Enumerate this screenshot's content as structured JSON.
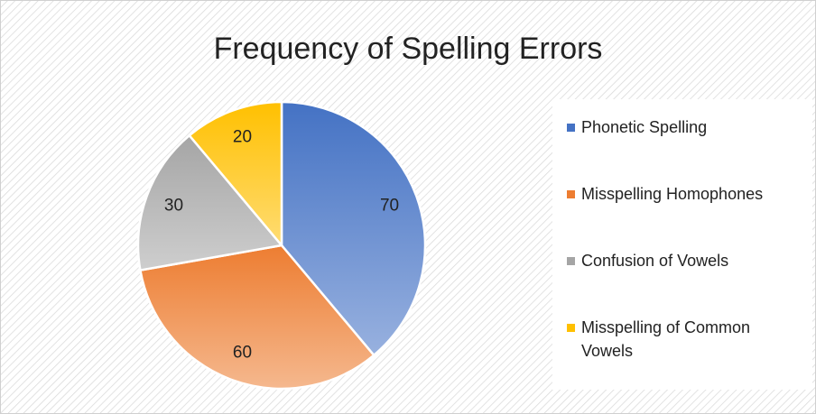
{
  "chart_data": {
    "type": "pie",
    "title": "Frequency of Spelling Errors",
    "categories": [
      "Phonetic Spelling",
      "Misspelling Homophones",
      "Confusion of Vowels",
      "Misspelling of Common Vowels"
    ],
    "values": [
      70,
      60,
      30,
      20
    ],
    "colors": [
      "#4472c4",
      "#ed7d31",
      "#a5a5a5",
      "#ffc000"
    ],
    "legend": "right"
  }
}
